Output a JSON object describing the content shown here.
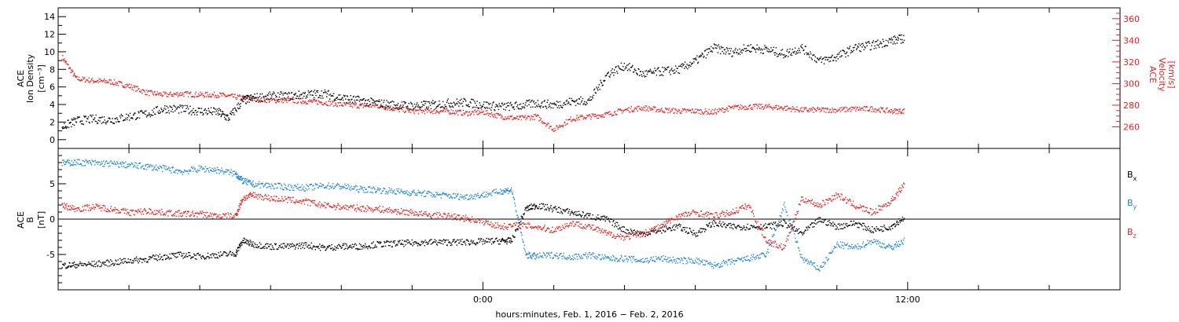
{
  "chart_data": [
    {
      "type": "scatter",
      "panel": "top",
      "ylabel_left": [
        "ACE",
        "Ion Density",
        "[cm⁻³]"
      ],
      "ylabel_right": [
        "ACE",
        "Velocity",
        "[km/s]"
      ],
      "left_axis": {
        "ylim": [
          -1,
          15
        ],
        "ticks": [
          0,
          2,
          4,
          6,
          8,
          10,
          12,
          14
        ],
        "color": "#000000"
      },
      "right_axis": {
        "ylim": [
          240,
          370
        ],
        "ticks": [
          260,
          280,
          300,
          320,
          340,
          360
        ],
        "color": "#e8211f"
      },
      "x_hours_range": [
        -12,
        18
      ],
      "series": [
        {
          "axis": "left",
          "color": "#000000",
          "points": [
            [
              -11.9,
              1.5
            ],
            [
              -11.5,
              2.2
            ],
            [
              -11,
              2.4
            ],
            [
              -10.5,
              2.3
            ],
            [
              -10,
              2.7
            ],
            [
              -9.5,
              3.0
            ],
            [
              -9,
              3.6
            ],
            [
              -8.5,
              3.5
            ],
            [
              -8,
              3.3
            ],
            [
              -7.5,
              3.2
            ],
            [
              -7.2,
              2.5
            ],
            [
              -6.8,
              4.5
            ],
            [
              -6.5,
              4.8
            ],
            [
              -6,
              5.0
            ],
            [
              -5.5,
              5.0
            ],
            [
              -5,
              5.2
            ],
            [
              -4.5,
              5.3
            ],
            [
              -4,
              4.8
            ],
            [
              -3.5,
              4.5
            ],
            [
              -3,
              4.2
            ],
            [
              -2.5,
              4.0
            ],
            [
              -2,
              3.9
            ],
            [
              -1.5,
              4.0
            ],
            [
              -1,
              4.2
            ],
            [
              -0.5,
              4.3
            ],
            [
              0,
              4.0
            ],
            [
              0.5,
              3.8
            ],
            [
              1,
              3.9
            ],
            [
              1.5,
              4.2
            ],
            [
              2,
              4.0
            ],
            [
              2.5,
              4.4
            ],
            [
              3,
              4.5
            ],
            [
              3.5,
              7.5
            ],
            [
              4,
              8.5
            ],
            [
              4.5,
              7.5
            ],
            [
              5,
              7.8
            ],
            [
              5.5,
              8.0
            ],
            [
              6,
              9.0
            ],
            [
              6.5,
              10.5
            ],
            [
              7,
              10.0
            ],
            [
              7.5,
              10.5
            ],
            [
              8,
              10.3
            ],
            [
              8.5,
              9.8
            ],
            [
              9,
              10.5
            ],
            [
              9.5,
              9.0
            ],
            [
              10,
              9.5
            ],
            [
              10.5,
              10.5
            ],
            [
              11,
              10.8
            ],
            [
              11.5,
              11.3
            ],
            [
              11.9,
              11.6
            ]
          ]
        },
        {
          "axis": "right",
          "color": "#e8211f",
          "points": [
            [
              -11.9,
              325
            ],
            [
              -11.5,
              305
            ],
            [
              -11,
              303
            ],
            [
              -10.5,
              302
            ],
            [
              -10,
              298
            ],
            [
              -9.5,
              292
            ],
            [
              -9,
              290
            ],
            [
              -8.5,
              291
            ],
            [
              -8,
              290
            ],
            [
              -7.5,
              290
            ],
            [
              -7,
              288
            ],
            [
              -6.5,
              286
            ],
            [
              -6,
              285
            ],
            [
              -5.5,
              285
            ],
            [
              -5,
              284
            ],
            [
              -4.5,
              283
            ],
            [
              -4,
              281
            ],
            [
              -3.5,
              280
            ],
            [
              -3,
              280
            ],
            [
              -2.5,
              277
            ],
            [
              -2,
              275
            ],
            [
              -1.5,
              275
            ],
            [
              -1,
              275
            ],
            [
              -0.5,
              273
            ],
            [
              0,
              274
            ],
            [
              0.5,
              270
            ],
            [
              1,
              268
            ],
            [
              1.5,
              270
            ],
            [
              2,
              258
            ],
            [
              2.5,
              268
            ],
            [
              3,
              270
            ],
            [
              3.5,
              272
            ],
            [
              4,
              276
            ],
            [
              4.5,
              278
            ],
            [
              5,
              276
            ],
            [
              5.5,
              275
            ],
            [
              6,
              275
            ],
            [
              6.5,
              274
            ],
            [
              7,
              278
            ],
            [
              7.5,
              279
            ],
            [
              8,
              279
            ],
            [
              8.5,
              278
            ],
            [
              9,
              276
            ],
            [
              9.5,
              276
            ],
            [
              10,
              276
            ],
            [
              10.5,
              277
            ],
            [
              11,
              277
            ],
            [
              11.5,
              275
            ],
            [
              11.9,
              275
            ]
          ]
        }
      ]
    },
    {
      "type": "scatter",
      "panel": "bottom",
      "ylabel": [
        "ACE",
        "B",
        "[nT]"
      ],
      "ylim": [
        -10,
        10
      ],
      "ticks": [
        -5,
        0,
        5
      ],
      "x_hours_range": [
        -12,
        18
      ],
      "x_ticks_labeled": [
        {
          "hour": 0,
          "label": "0:00"
        },
        {
          "hour": 12,
          "label": "12:00"
        }
      ],
      "x_minor_tick_step_hours": 2,
      "xlabel": "hours:minutes, Feb.  1, 2016 − Feb.  2, 2016",
      "legend": [
        "B",
        "B",
        "B"
      ],
      "legend_subscripts": [
        "x",
        "y",
        "z"
      ],
      "legend_colors": [
        "#000000",
        "#1f85d8",
        "#e8211f"
      ],
      "legend_placement": "right",
      "series": [
        {
          "name_subscript": "x",
          "color": "#000000",
          "points": [
            [
              -11.9,
              -6.5
            ],
            [
              -11.5,
              -6.4
            ],
            [
              -11,
              -6.3
            ],
            [
              -10.5,
              -6.1
            ],
            [
              -10,
              -5.8
            ],
            [
              -9.5,
              -5.6
            ],
            [
              -9,
              -5.2
            ],
            [
              -8.5,
              -5.0
            ],
            [
              -8,
              -5.2
            ],
            [
              -7.5,
              -5.0
            ],
            [
              -7,
              -4.8
            ],
            [
              -6.8,
              -3.0
            ],
            [
              -6.5,
              -3.5
            ],
            [
              -6,
              -3.8
            ],
            [
              -5.5,
              -3.8
            ],
            [
              -5,
              -3.6
            ],
            [
              -4.5,
              -4.0
            ],
            [
              -4,
              -3.8
            ],
            [
              -3.5,
              -3.8
            ],
            [
              -3,
              -3.5
            ],
            [
              -2.5,
              -3.4
            ],
            [
              -2,
              -3.3
            ],
            [
              -1.5,
              -3.2
            ],
            [
              -1,
              -3.2
            ],
            [
              -0.5,
              -3.2
            ],
            [
              0,
              -3.1
            ],
            [
              0.5,
              -3.0
            ],
            [
              0.8,
              -3.0
            ],
            [
              1.2,
              1.5
            ],
            [
              1.5,
              2.0
            ],
            [
              2,
              1.5
            ],
            [
              2.5,
              1.0
            ],
            [
              3,
              0.5
            ],
            [
              3.5,
              0
            ],
            [
              4,
              -1.5
            ],
            [
              4.5,
              -2.0
            ],
            [
              5,
              -1.5
            ],
            [
              5.5,
              -1.0
            ],
            [
              6,
              -2.0
            ],
            [
              6.5,
              -0.5
            ],
            [
              7,
              -1.0
            ],
            [
              7.5,
              -1.0
            ],
            [
              8,
              -1.0
            ],
            [
              8.5,
              -0.5
            ],
            [
              9,
              -2.0
            ],
            [
              9.5,
              0
            ],
            [
              10,
              -1.0
            ],
            [
              10.5,
              -0.5
            ],
            [
              11,
              -1.5
            ],
            [
              11.5,
              -1.0
            ],
            [
              11.9,
              0.3
            ]
          ]
        },
        {
          "name_subscript": "y",
          "color": "#1f85d8",
          "points": [
            [
              -11.9,
              8.0
            ],
            [
              -11.5,
              8.1
            ],
            [
              -11,
              8.0
            ],
            [
              -10.5,
              7.9
            ],
            [
              -10,
              7.7
            ],
            [
              -9.5,
              7.5
            ],
            [
              -9,
              7.2
            ],
            [
              -8.5,
              6.8
            ],
            [
              -8,
              7.2
            ],
            [
              -7.5,
              7.0
            ],
            [
              -7,
              6.5
            ],
            [
              -6.8,
              5.5
            ],
            [
              -6.5,
              5.0
            ],
            [
              -6,
              4.8
            ],
            [
              -5.5,
              4.6
            ],
            [
              -5,
              4.5
            ],
            [
              -4.5,
              4.8
            ],
            [
              -4,
              4.7
            ],
            [
              -3.5,
              4.3
            ],
            [
              -3,
              4.2
            ],
            [
              -2.5,
              4.0
            ],
            [
              -2,
              3.8
            ],
            [
              -1.5,
              3.6
            ],
            [
              -1,
              3.4
            ],
            [
              -0.5,
              3.2
            ],
            [
              0,
              3.5
            ],
            [
              0.5,
              4.0
            ],
            [
              0.8,
              4.2
            ],
            [
              1.2,
              -5.0
            ],
            [
              1.5,
              -5.2
            ],
            [
              2,
              -5.0
            ],
            [
              2.5,
              -5.3
            ],
            [
              3,
              -5.0
            ],
            [
              3.5,
              -5.5
            ],
            [
              4,
              -5.5
            ],
            [
              4.5,
              -5.8
            ],
            [
              5,
              -5.5
            ],
            [
              5.5,
              -5.8
            ],
            [
              6,
              -5.8
            ],
            [
              6.5,
              -6.5
            ],
            [
              7,
              -6.0
            ],
            [
              7.5,
              -5.5
            ],
            [
              8,
              -5.0
            ],
            [
              8.5,
              2.0
            ],
            [
              9,
              -5.5
            ],
            [
              9.5,
              -7.0
            ],
            [
              10,
              -3.5
            ],
            [
              10.5,
              -4.0
            ],
            [
              11,
              -3.0
            ],
            [
              11.5,
              -4.0
            ],
            [
              11.9,
              -3.0
            ]
          ]
        },
        {
          "name_subscript": "z",
          "color": "#e8211f",
          "points": [
            [
              -11.9,
              2.0
            ],
            [
              -11.5,
              1.5
            ],
            [
              -11,
              1.8
            ],
            [
              -10.5,
              1.5
            ],
            [
              -10,
              1.0
            ],
            [
              -9.5,
              1.2
            ],
            [
              -9,
              1.0
            ],
            [
              -8.5,
              0.8
            ],
            [
              -8,
              0.8
            ],
            [
              -7.5,
              0.5
            ],
            [
              -7,
              0.5
            ],
            [
              -6.8,
              3.0
            ],
            [
              -6.5,
              3.5
            ],
            [
              -6,
              3.0
            ],
            [
              -5.5,
              2.8
            ],
            [
              -5,
              2.5
            ],
            [
              -4.5,
              2.0
            ],
            [
              -4,
              1.8
            ],
            [
              -3.5,
              1.6
            ],
            [
              -3,
              1.5
            ],
            [
              -2.5,
              1.2
            ],
            [
              -2,
              1.0
            ],
            [
              -1.5,
              0.6
            ],
            [
              -1,
              0.5
            ],
            [
              -0.5,
              0.2
            ],
            [
              0,
              -0.3
            ],
            [
              0.5,
              -1.0
            ],
            [
              1,
              -0.8
            ],
            [
              1.5,
              -1.0
            ],
            [
              2,
              -1.5
            ],
            [
              2.5,
              -0.5
            ],
            [
              3,
              -1.0
            ],
            [
              3.5,
              -2.0
            ],
            [
              4,
              -2.5
            ],
            [
              4.5,
              -2.0
            ],
            [
              5,
              -1.0
            ],
            [
              5.5,
              0.5
            ],
            [
              6,
              1.0
            ],
            [
              6.5,
              0.5
            ],
            [
              7,
              1.0
            ],
            [
              7.5,
              2.0
            ],
            [
              8,
              -3.0
            ],
            [
              8.5,
              -4.0
            ],
            [
              9,
              3.0
            ],
            [
              9.5,
              2.0
            ],
            [
              10,
              3.5
            ],
            [
              10.5,
              2.0
            ],
            [
              11,
              1.0
            ],
            [
              11.5,
              2.5
            ],
            [
              11.9,
              5.0
            ]
          ]
        }
      ]
    }
  ]
}
